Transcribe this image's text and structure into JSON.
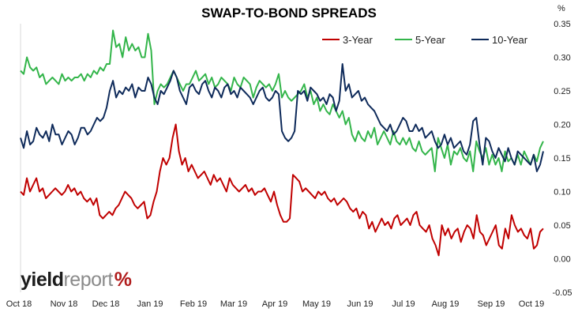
{
  "chart_data": {
    "type": "line",
    "title": "SWAP-TO-BOND SPREADS",
    "y_unit": "%",
    "ylim": [
      -0.05,
      0.35
    ],
    "y_ticks": [
      "0.35",
      "0.30",
      "0.25",
      "0.20",
      "0.15",
      "0.10",
      "0.05",
      "0.00",
      "-0.05"
    ],
    "x_tick_labels": [
      "Oct 18",
      "Nov 18",
      "Dec 18",
      "Jan 19",
      "Feb 19",
      "Mar 19",
      "Apr 19",
      "May 19",
      "Jun 19",
      "Jul 19",
      "Aug 19",
      "Sep 19",
      "Oct 19"
    ],
    "grid": false,
    "legend_position": "top-right",
    "series": [
      {
        "name": "3-Year",
        "color": "#c00000",
        "values": [
          0.1,
          0.095,
          0.12,
          0.1,
          0.11,
          0.12,
          0.1,
          0.105,
          0.09,
          0.095,
          0.1,
          0.105,
          0.1,
          0.095,
          0.1,
          0.11,
          0.1,
          0.105,
          0.095,
          0.1,
          0.09,
          0.085,
          0.09,
          0.08,
          0.09,
          0.065,
          0.06,
          0.065,
          0.07,
          0.065,
          0.075,
          0.08,
          0.09,
          0.1,
          0.095,
          0.09,
          0.08,
          0.075,
          0.08,
          0.085,
          0.06,
          0.065,
          0.085,
          0.1,
          0.13,
          0.15,
          0.14,
          0.15,
          0.18,
          0.2,
          0.16,
          0.14,
          0.15,
          0.13,
          0.14,
          0.13,
          0.12,
          0.125,
          0.13,
          0.12,
          0.11,
          0.125,
          0.115,
          0.12,
          0.11,
          0.1,
          0.12,
          0.11,
          0.105,
          0.1,
          0.105,
          0.11,
          0.1,
          0.105,
          0.095,
          0.1,
          0.1,
          0.105,
          0.095,
          0.085,
          0.1,
          0.08,
          0.065,
          0.055,
          0.055,
          0.06,
          0.125,
          0.12,
          0.115,
          0.1,
          0.105,
          0.1,
          0.095,
          0.09,
          0.1,
          0.095,
          0.1,
          0.09,
          0.085,
          0.09,
          0.08,
          0.085,
          0.09,
          0.085,
          0.075,
          0.07,
          0.075,
          0.06,
          0.07,
          0.065,
          0.045,
          0.055,
          0.04,
          0.05,
          0.06,
          0.05,
          0.055,
          0.045,
          0.06,
          0.065,
          0.05,
          0.055,
          0.06,
          0.05,
          0.065,
          0.07,
          0.05,
          0.045,
          0.04,
          0.05,
          0.03,
          0.02,
          0.005,
          0.05,
          0.035,
          0.045,
          0.03,
          0.04,
          0.045,
          0.025,
          0.04,
          0.05,
          0.045,
          0.03,
          0.065,
          0.04,
          0.035,
          0.02,
          0.03,
          0.04,
          0.05,
          0.02,
          0.015,
          0.045,
          0.03,
          0.065,
          0.05,
          0.04,
          0.045,
          0.035,
          0.03,
          0.045,
          0.015,
          0.02,
          0.04,
          0.045
        ]
      },
      {
        "name": "5-Year",
        "color": "#33b54a",
        "values": [
          0.28,
          0.275,
          0.3,
          0.285,
          0.28,
          0.285,
          0.27,
          0.275,
          0.26,
          0.265,
          0.27,
          0.265,
          0.26,
          0.275,
          0.265,
          0.27,
          0.265,
          0.27,
          0.27,
          0.275,
          0.265,
          0.275,
          0.27,
          0.28,
          0.275,
          0.285,
          0.28,
          0.29,
          0.29,
          0.34,
          0.315,
          0.32,
          0.3,
          0.33,
          0.31,
          0.32,
          0.31,
          0.315,
          0.3,
          0.3,
          0.335,
          0.31,
          0.23,
          0.25,
          0.26,
          0.255,
          0.26,
          0.27,
          0.28,
          0.27,
          0.26,
          0.25,
          0.26,
          0.26,
          0.27,
          0.28,
          0.265,
          0.27,
          0.275,
          0.26,
          0.27,
          0.255,
          0.26,
          0.27,
          0.265,
          0.26,
          0.25,
          0.27,
          0.26,
          0.255,
          0.27,
          0.265,
          0.26,
          0.24,
          0.255,
          0.265,
          0.26,
          0.255,
          0.26,
          0.25,
          0.26,
          0.275,
          0.24,
          0.25,
          0.24,
          0.235,
          0.24,
          0.245,
          0.25,
          0.26,
          0.24,
          0.25,
          0.23,
          0.24,
          0.22,
          0.23,
          0.22,
          0.215,
          0.23,
          0.22,
          0.21,
          0.22,
          0.2,
          0.21,
          0.185,
          0.175,
          0.19,
          0.18,
          0.175,
          0.19,
          0.18,
          0.195,
          0.17,
          0.18,
          0.19,
          0.18,
          0.17,
          0.19,
          0.175,
          0.17,
          0.18,
          0.17,
          0.18,
          0.165,
          0.16,
          0.175,
          0.16,
          0.155,
          0.16,
          0.165,
          0.13,
          0.18,
          0.165,
          0.15,
          0.17,
          0.14,
          0.16,
          0.155,
          0.165,
          0.15,
          0.145,
          0.16,
          0.13,
          0.175,
          0.16,
          0.15,
          0.165,
          0.14,
          0.155,
          0.14,
          0.15,
          0.13,
          0.16,
          0.145,
          0.15,
          0.14,
          0.155,
          0.14,
          0.16,
          0.15,
          0.14,
          0.155,
          0.145,
          0.165,
          0.175
        ]
      },
      {
        "name": "10-Year",
        "color": "#0e2a5a",
        "values": [
          0.18,
          0.165,
          0.19,
          0.17,
          0.175,
          0.195,
          0.185,
          0.18,
          0.19,
          0.175,
          0.2,
          0.185,
          0.185,
          0.17,
          0.18,
          0.19,
          0.185,
          0.17,
          0.18,
          0.195,
          0.195,
          0.185,
          0.19,
          0.2,
          0.21,
          0.205,
          0.21,
          0.225,
          0.25,
          0.265,
          0.24,
          0.25,
          0.245,
          0.255,
          0.25,
          0.26,
          0.24,
          0.255,
          0.25,
          0.25,
          0.27,
          0.26,
          0.24,
          0.23,
          0.25,
          0.245,
          0.255,
          0.265,
          0.28,
          0.27,
          0.25,
          0.24,
          0.23,
          0.255,
          0.26,
          0.25,
          0.245,
          0.26,
          0.265,
          0.25,
          0.24,
          0.255,
          0.25,
          0.24,
          0.255,
          0.26,
          0.245,
          0.25,
          0.24,
          0.255,
          0.25,
          0.245,
          0.24,
          0.23,
          0.24,
          0.25,
          0.255,
          0.24,
          0.235,
          0.24,
          0.25,
          0.245,
          0.19,
          0.18,
          0.175,
          0.18,
          0.19,
          0.25,
          0.245,
          0.25,
          0.235,
          0.255,
          0.25,
          0.245,
          0.235,
          0.24,
          0.23,
          0.245,
          0.24,
          0.22,
          0.235,
          0.29,
          0.25,
          0.26,
          0.24,
          0.245,
          0.25,
          0.235,
          0.24,
          0.23,
          0.225,
          0.22,
          0.21,
          0.2,
          0.195,
          0.19,
          0.2,
          0.185,
          0.19,
          0.2,
          0.21,
          0.205,
          0.19,
          0.19,
          0.2,
          0.19,
          0.195,
          0.18,
          0.185,
          0.19,
          0.175,
          0.165,
          0.17,
          0.185,
          0.17,
          0.18,
          0.165,
          0.17,
          0.175,
          0.16,
          0.155,
          0.17,
          0.205,
          0.21,
          0.17,
          0.14,
          0.18,
          0.175,
          0.16,
          0.15,
          0.165,
          0.155,
          0.145,
          0.165,
          0.15,
          0.14,
          0.16,
          0.155,
          0.15,
          0.145,
          0.14,
          0.155,
          0.13,
          0.14,
          0.16
        ]
      }
    ]
  },
  "logo": {
    "part1": "yield",
    "part2": "report",
    "symbol": "%"
  }
}
